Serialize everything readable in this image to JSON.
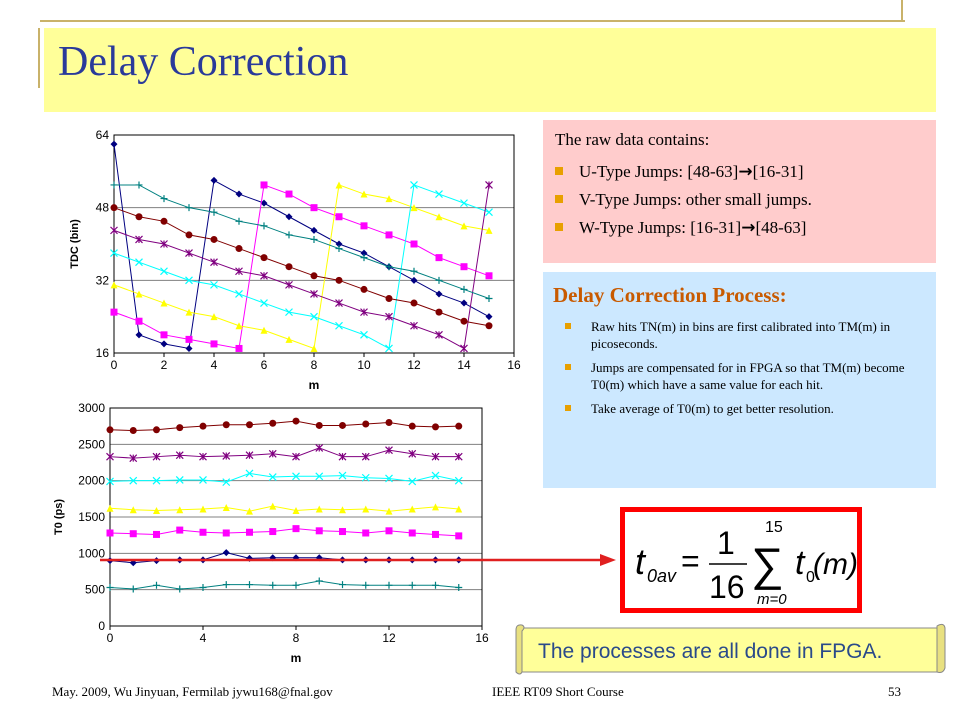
{
  "slide": {
    "title": "Delay Correction",
    "footer_left": "May. 2009, Wu Jinyuan, Fermilab jywu168@fnal.gov",
    "footer_center": "IEEE RT09 Short Course",
    "page_number": "53"
  },
  "raw_box": {
    "heading": "The raw data contains:",
    "items": [
      {
        "pre": "U-Type Jumps: [48-63]",
        "arrow": "→",
        "post": "[16-31]"
      },
      {
        "pre": "V-Type Jumps: other small jumps.",
        "arrow": "",
        "post": ""
      },
      {
        "pre": "W-Type Jumps: [16-31]",
        "arrow": "→",
        "post": "[48-63]"
      }
    ]
  },
  "process_box": {
    "heading": "Delay Correction Process:",
    "items": [
      "Raw hits TN(m) in bins are first calibrated into TM(m) in picoseconds.",
      "Jumps are compensated for in FPGA so that TM(m) become T0(m) which have a same value for each hit.",
      "Take average of T0(m) to get better resolution."
    ]
  },
  "formula": {
    "lhs": "t",
    "lhs_sub": "0av",
    "frac_num": "1",
    "frac_den": "16",
    "sigma": "∑",
    "upper": "15",
    "lower": "m=0",
    "term": "t",
    "term_sub": "0",
    "arg": "(m)",
    "equals": "="
  },
  "note": "The processes are all done in FPGA.",
  "colors": {
    "title": "#2a3a9a",
    "title_bg": "#ffff99",
    "pink_bg": "#ffcccc",
    "blue_bg": "#cce8ff",
    "heading_orange": "#c85a00",
    "bullet": "#e8a000",
    "formula_border": "#ff0000",
    "arrow": "#e02020",
    "note_text": "#2a4a8a"
  },
  "chart_data": [
    {
      "type": "line",
      "xlabel": "m",
      "ylabel": "TDC (bin)",
      "xlim": [
        0,
        16
      ],
      "ylim": [
        16,
        64
      ],
      "xticks": [
        0,
        2,
        4,
        6,
        8,
        10,
        12,
        14,
        16
      ],
      "yticks": [
        16,
        32,
        48,
        64
      ],
      "grid": true,
      "legend": "none",
      "series": [
        {
          "color": "#000080",
          "marker": "diamond",
          "x": [
            0,
            1,
            2,
            3,
            4,
            5,
            6,
            7,
            8,
            9,
            10,
            11,
            12,
            13,
            14,
            15
          ],
          "y": [
            62,
            20,
            18,
            17,
            54,
            51,
            49,
            46,
            43,
            40,
            38,
            35,
            32,
            29,
            27,
            24
          ]
        },
        {
          "color": "#ff00ff",
          "marker": "square",
          "x": [
            0,
            1,
            2,
            3,
            4,
            5,
            6,
            7,
            8,
            9,
            10,
            11,
            12,
            13,
            14,
            15
          ],
          "y": [
            25,
            23,
            20,
            19,
            18,
            17,
            53,
            51,
            48,
            46,
            44,
            42,
            40,
            37,
            35,
            33
          ]
        },
        {
          "color": "#ffff00",
          "marker": "triangle",
          "x": [
            0,
            1,
            2,
            3,
            4,
            5,
            6,
            7,
            8,
            9,
            10,
            11,
            12,
            13,
            14,
            15
          ],
          "y": [
            31,
            29,
            27,
            25,
            24,
            22,
            21,
            19,
            17,
            53,
            51,
            50,
            48,
            46,
            44,
            43
          ]
        },
        {
          "color": "#00ffff",
          "marker": "x",
          "x": [
            0,
            1,
            2,
            3,
            4,
            5,
            6,
            7,
            8,
            9,
            10,
            11,
            12,
            13,
            14,
            15
          ],
          "y": [
            38,
            36,
            34,
            32,
            31,
            29,
            27,
            25,
            24,
            22,
            20,
            17,
            53,
            51,
            49,
            47
          ]
        },
        {
          "color": "#800080",
          "marker": "star",
          "x": [
            0,
            1,
            2,
            3,
            4,
            5,
            6,
            7,
            8,
            9,
            10,
            11,
            12,
            13,
            14,
            15
          ],
          "y": [
            43,
            41,
            40,
            38,
            36,
            34,
            33,
            31,
            29,
            27,
            25,
            24,
            22,
            20,
            17,
            53
          ]
        },
        {
          "color": "#008080",
          "marker": "plus",
          "x": [
            0,
            1,
            2,
            3,
            4,
            5,
            6,
            7,
            8,
            9,
            10,
            11,
            12,
            13,
            14,
            15
          ],
          "y": [
            53,
            53,
            50,
            48,
            47,
            45,
            44,
            42,
            41,
            39,
            37,
            35,
            34,
            32,
            30,
            28
          ]
        },
        {
          "color": "#800000",
          "marker": "circle",
          "x": [
            0,
            1,
            2,
            3,
            4,
            5,
            6,
            7,
            8,
            9,
            10,
            11,
            12,
            13,
            14,
            15
          ],
          "y": [
            48,
            46,
            45,
            42,
            41,
            39,
            37,
            35,
            33,
            32,
            30,
            28,
            27,
            25,
            23,
            22
          ]
        }
      ]
    },
    {
      "type": "line",
      "xlabel": "m",
      "ylabel": "T0 (ps)",
      "xlim": [
        0,
        16
      ],
      "ylim": [
        0,
        3000
      ],
      "xticks": [
        0,
        4,
        8,
        12,
        16
      ],
      "yticks": [
        0,
        500,
        1000,
        1500,
        2000,
        2500,
        3000
      ],
      "grid": true,
      "legend": "none",
      "series": [
        {
          "color": "#800000",
          "marker": "circle",
          "x": [
            0,
            1,
            2,
            3,
            4,
            5,
            6,
            7,
            8,
            9,
            10,
            11,
            12,
            13,
            14,
            15
          ],
          "y": [
            2700,
            2690,
            2700,
            2730,
            2750,
            2770,
            2770,
            2790,
            2820,
            2760,
            2760,
            2780,
            2800,
            2750,
            2740,
            2750
          ]
        },
        {
          "color": "#800080",
          "marker": "star",
          "x": [
            0,
            1,
            2,
            3,
            4,
            5,
            6,
            7,
            8,
            9,
            10,
            11,
            12,
            13,
            14,
            15
          ],
          "y": [
            2330,
            2310,
            2330,
            2350,
            2330,
            2340,
            2350,
            2370,
            2330,
            2450,
            2330,
            2330,
            2420,
            2370,
            2330,
            2330
          ]
        },
        {
          "color": "#00ffff",
          "marker": "x",
          "x": [
            0,
            1,
            2,
            3,
            4,
            5,
            6,
            7,
            8,
            9,
            10,
            11,
            12,
            13,
            14,
            15
          ],
          "y": [
            1990,
            2000,
            2000,
            2010,
            2010,
            1980,
            2100,
            2050,
            2060,
            2060,
            2070,
            2040,
            2030,
            1990,
            2070,
            2000
          ]
        },
        {
          "color": "#ffff00",
          "marker": "triangle",
          "x": [
            0,
            1,
            2,
            3,
            4,
            5,
            6,
            7,
            8,
            9,
            10,
            11,
            12,
            13,
            14,
            15
          ],
          "y": [
            1620,
            1600,
            1590,
            1600,
            1610,
            1630,
            1580,
            1650,
            1590,
            1610,
            1600,
            1610,
            1580,
            1610,
            1640,
            1610
          ]
        },
        {
          "color": "#ff00ff",
          "marker": "square",
          "x": [
            0,
            1,
            2,
            3,
            4,
            5,
            6,
            7,
            8,
            9,
            10,
            11,
            12,
            13,
            14,
            15
          ],
          "y": [
            1280,
            1270,
            1260,
            1320,
            1290,
            1280,
            1290,
            1300,
            1340,
            1310,
            1300,
            1280,
            1310,
            1280,
            1260,
            1240
          ]
        },
        {
          "color": "#000080",
          "marker": "diamond",
          "x": [
            0,
            1,
            2,
            3,
            4,
            5,
            6,
            7,
            8,
            9,
            10,
            11,
            12,
            13,
            14,
            15
          ],
          "y": [
            900,
            870,
            900,
            910,
            910,
            1010,
            930,
            940,
            940,
            940,
            910,
            910,
            910,
            910,
            910,
            910
          ]
        },
        {
          "color": "#008080",
          "marker": "plus",
          "x": [
            0,
            1,
            2,
            3,
            4,
            5,
            6,
            7,
            8,
            9,
            10,
            11,
            12,
            13,
            14,
            15
          ],
          "y": [
            530,
            510,
            560,
            510,
            530,
            570,
            570,
            560,
            560,
            620,
            570,
            560,
            560,
            560,
            560,
            530
          ]
        }
      ]
    }
  ]
}
